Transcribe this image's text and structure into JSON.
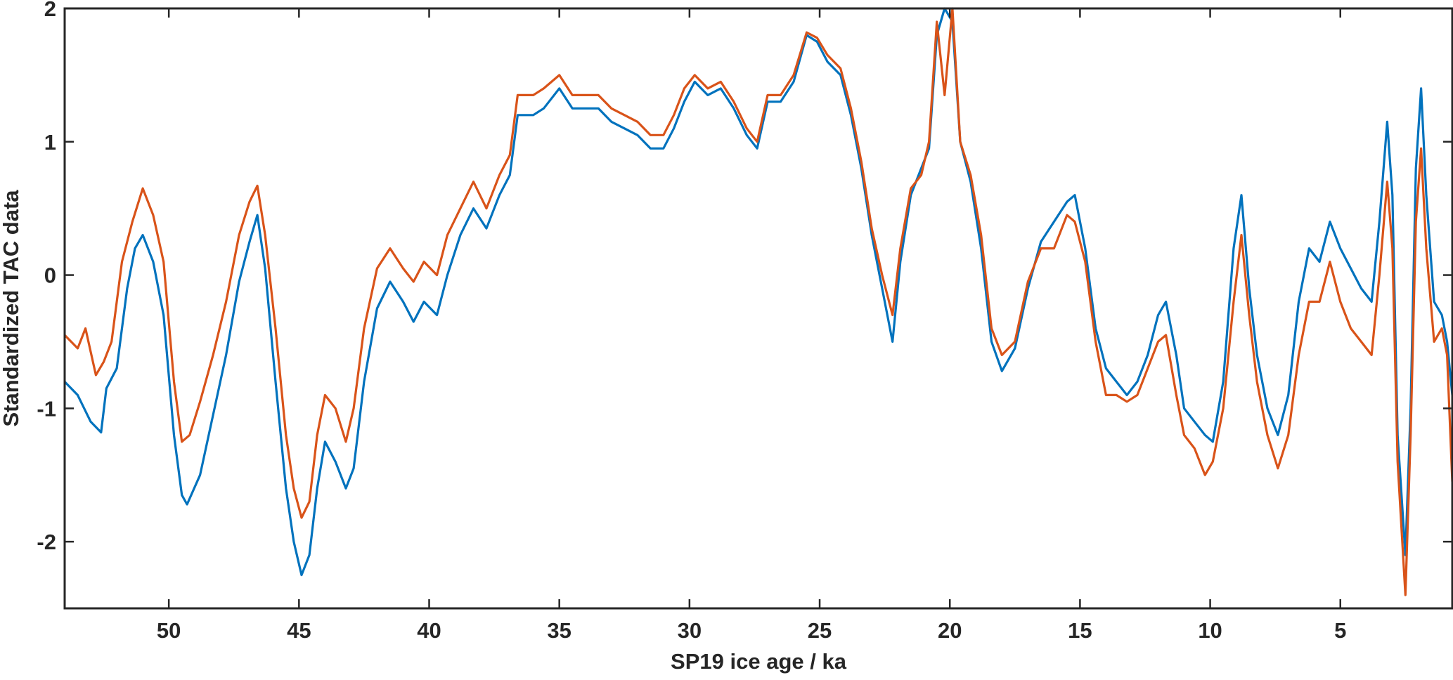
{
  "chart_data": {
    "type": "line",
    "xlabel": "SP19 ice age / ka",
    "ylabel": "Standardized TAC data",
    "x_reversed": true,
    "xlim": [
      54,
      0.7
    ],
    "ylim": [
      -2.5,
      2
    ],
    "xticks": [
      50,
      45,
      40,
      35,
      30,
      25,
      20,
      15,
      10,
      5
    ],
    "yticks": [
      -2,
      -1,
      0,
      1,
      2
    ],
    "grid": false,
    "legend": "none",
    "series": [
      {
        "color": "#0072BD",
        "points": [
          [
            54,
            -0.8
          ],
          [
            53.5,
            -0.9
          ],
          [
            53,
            -1.1
          ],
          [
            52.6,
            -1.18
          ],
          [
            52.4,
            -0.85
          ],
          [
            52,
            -0.7
          ],
          [
            51.6,
            -0.1
          ],
          [
            51.3,
            0.2
          ],
          [
            51,
            0.3
          ],
          [
            50.6,
            0.1
          ],
          [
            50.2,
            -0.3
          ],
          [
            49.8,
            -1.2
          ],
          [
            49.5,
            -1.65
          ],
          [
            49.3,
            -1.72
          ],
          [
            48.8,
            -1.5
          ],
          [
            48.3,
            -1.05
          ],
          [
            47.8,
            -0.6
          ],
          [
            47.3,
            -0.05
          ],
          [
            46.9,
            0.25
          ],
          [
            46.6,
            0.45
          ],
          [
            46.3,
            0.05
          ],
          [
            45.9,
            -0.8
          ],
          [
            45.5,
            -1.6
          ],
          [
            45.2,
            -2.0
          ],
          [
            44.9,
            -2.25
          ],
          [
            44.6,
            -2.1
          ],
          [
            44.3,
            -1.6
          ],
          [
            44,
            -1.25
          ],
          [
            43.6,
            -1.4
          ],
          [
            43.2,
            -1.6
          ],
          [
            42.9,
            -1.45
          ],
          [
            42.5,
            -0.8
          ],
          [
            42,
            -0.25
          ],
          [
            41.5,
            -0.05
          ],
          [
            41,
            -0.2
          ],
          [
            40.6,
            -0.35
          ],
          [
            40.2,
            -0.2
          ],
          [
            39.7,
            -0.3
          ],
          [
            39.3,
            0.0
          ],
          [
            38.8,
            0.3
          ],
          [
            38.3,
            0.5
          ],
          [
            37.8,
            0.35
          ],
          [
            37.3,
            0.6
          ],
          [
            36.9,
            0.75
          ],
          [
            36.6,
            1.2
          ],
          [
            36,
            1.2
          ],
          [
            35.6,
            1.25
          ],
          [
            35,
            1.4
          ],
          [
            34.5,
            1.25
          ],
          [
            34,
            1.25
          ],
          [
            33.5,
            1.25
          ],
          [
            33,
            1.15
          ],
          [
            32.5,
            1.1
          ],
          [
            32,
            1.05
          ],
          [
            31.5,
            0.95
          ],
          [
            31,
            0.95
          ],
          [
            30.6,
            1.1
          ],
          [
            30.2,
            1.3
          ],
          [
            29.8,
            1.45
          ],
          [
            29.3,
            1.35
          ],
          [
            28.8,
            1.4
          ],
          [
            28.3,
            1.25
          ],
          [
            27.8,
            1.05
          ],
          [
            27.4,
            0.95
          ],
          [
            27,
            1.3
          ],
          [
            26.5,
            1.3
          ],
          [
            26,
            1.45
          ],
          [
            25.5,
            1.8
          ],
          [
            25.1,
            1.75
          ],
          [
            24.7,
            1.6
          ],
          [
            24.2,
            1.5
          ],
          [
            23.8,
            1.2
          ],
          [
            23.4,
            0.8
          ],
          [
            23,
            0.3
          ],
          [
            22.6,
            -0.1
          ],
          [
            22.2,
            -0.5
          ],
          [
            21.9,
            0.1
          ],
          [
            21.5,
            0.6
          ],
          [
            21.1,
            0.8
          ],
          [
            20.8,
            0.95
          ],
          [
            20.5,
            1.8
          ],
          [
            20.2,
            2.0
          ],
          [
            19.9,
            1.9
          ],
          [
            19.6,
            1.0
          ],
          [
            19.2,
            0.7
          ],
          [
            18.8,
            0.2
          ],
          [
            18.4,
            -0.5
          ],
          [
            18,
            -0.72
          ],
          [
            17.5,
            -0.55
          ],
          [
            17,
            -0.1
          ],
          [
            16.5,
            0.25
          ],
          [
            16,
            0.4
          ],
          [
            15.5,
            0.55
          ],
          [
            15.2,
            0.6
          ],
          [
            14.8,
            0.2
          ],
          [
            14.4,
            -0.4
          ],
          [
            14,
            -0.7
          ],
          [
            13.6,
            -0.8
          ],
          [
            13.2,
            -0.9
          ],
          [
            12.8,
            -0.8
          ],
          [
            12.4,
            -0.6
          ],
          [
            12,
            -0.3
          ],
          [
            11.7,
            -0.2
          ],
          [
            11.3,
            -0.6
          ],
          [
            11,
            -1.0
          ],
          [
            10.6,
            -1.1
          ],
          [
            10.2,
            -1.2
          ],
          [
            9.9,
            -1.25
          ],
          [
            9.5,
            -0.8
          ],
          [
            9.1,
            0.2
          ],
          [
            8.8,
            0.6
          ],
          [
            8.5,
            -0.1
          ],
          [
            8.2,
            -0.6
          ],
          [
            7.8,
            -1.0
          ],
          [
            7.4,
            -1.2
          ],
          [
            7,
            -0.9
          ],
          [
            6.6,
            -0.2
          ],
          [
            6.2,
            0.2
          ],
          [
            5.8,
            0.1
          ],
          [
            5.4,
            0.4
          ],
          [
            5,
            0.2
          ],
          [
            4.6,
            0.05
          ],
          [
            4.2,
            -0.1
          ],
          [
            3.8,
            -0.2
          ],
          [
            3.5,
            0.4
          ],
          [
            3.2,
            1.15
          ],
          [
            3,
            0.6
          ],
          [
            2.8,
            -1.2
          ],
          [
            2.5,
            -2.1
          ],
          [
            2.3,
            -1.0
          ],
          [
            2.1,
            0.8
          ],
          [
            1.9,
            1.4
          ],
          [
            1.7,
            0.6
          ],
          [
            1.4,
            -0.2
          ],
          [
            1.1,
            -0.3
          ],
          [
            0.9,
            -0.5
          ],
          [
            0.7,
            -0.9
          ]
        ]
      },
      {
        "color": "#D95319",
        "points": [
          [
            54,
            -0.45
          ],
          [
            53.5,
            -0.55
          ],
          [
            53.2,
            -0.4
          ],
          [
            52.8,
            -0.75
          ],
          [
            52.5,
            -0.65
          ],
          [
            52.2,
            -0.5
          ],
          [
            51.8,
            0.1
          ],
          [
            51.4,
            0.4
          ],
          [
            51,
            0.65
          ],
          [
            50.6,
            0.45
          ],
          [
            50.2,
            0.1
          ],
          [
            49.8,
            -0.8
          ],
          [
            49.5,
            -1.25
          ],
          [
            49.2,
            -1.2
          ],
          [
            48.8,
            -0.95
          ],
          [
            48.3,
            -0.6
          ],
          [
            47.8,
            -0.2
          ],
          [
            47.3,
            0.3
          ],
          [
            46.9,
            0.55
          ],
          [
            46.6,
            0.67
          ],
          [
            46.3,
            0.3
          ],
          [
            45.9,
            -0.4
          ],
          [
            45.5,
            -1.2
          ],
          [
            45.2,
            -1.6
          ],
          [
            44.9,
            -1.82
          ],
          [
            44.6,
            -1.7
          ],
          [
            44.3,
            -1.2
          ],
          [
            44,
            -0.9
          ],
          [
            43.6,
            -1.0
          ],
          [
            43.2,
            -1.25
          ],
          [
            42.9,
            -1.0
          ],
          [
            42.5,
            -0.4
          ],
          [
            42,
            0.05
          ],
          [
            41.5,
            0.2
          ],
          [
            41,
            0.05
          ],
          [
            40.6,
            -0.05
          ],
          [
            40.2,
            0.1
          ],
          [
            39.7,
            0.0
          ],
          [
            39.3,
            0.3
          ],
          [
            38.8,
            0.5
          ],
          [
            38.3,
            0.7
          ],
          [
            37.8,
            0.5
          ],
          [
            37.3,
            0.75
          ],
          [
            36.9,
            0.9
          ],
          [
            36.6,
            1.35
          ],
          [
            36,
            1.35
          ],
          [
            35.6,
            1.4
          ],
          [
            35,
            1.5
          ],
          [
            34.5,
            1.35
          ],
          [
            34,
            1.35
          ],
          [
            33.5,
            1.35
          ],
          [
            33,
            1.25
          ],
          [
            32.5,
            1.2
          ],
          [
            32,
            1.15
          ],
          [
            31.5,
            1.05
          ],
          [
            31,
            1.05
          ],
          [
            30.6,
            1.2
          ],
          [
            30.2,
            1.4
          ],
          [
            29.8,
            1.5
          ],
          [
            29.3,
            1.4
          ],
          [
            28.8,
            1.45
          ],
          [
            28.3,
            1.3
          ],
          [
            27.8,
            1.1
          ],
          [
            27.4,
            1.0
          ],
          [
            27,
            1.35
          ],
          [
            26.5,
            1.35
          ],
          [
            26,
            1.5
          ],
          [
            25.5,
            1.82
          ],
          [
            25.1,
            1.78
          ],
          [
            24.7,
            1.65
          ],
          [
            24.2,
            1.55
          ],
          [
            23.8,
            1.25
          ],
          [
            23.4,
            0.85
          ],
          [
            23,
            0.35
          ],
          [
            22.6,
            0.0
          ],
          [
            22.2,
            -0.3
          ],
          [
            21.9,
            0.2
          ],
          [
            21.5,
            0.65
          ],
          [
            21.1,
            0.75
          ],
          [
            20.8,
            1.0
          ],
          [
            20.5,
            1.9
          ],
          [
            20.2,
            1.35
          ],
          [
            19.9,
            2.0
          ],
          [
            19.6,
            1.0
          ],
          [
            19.2,
            0.75
          ],
          [
            18.8,
            0.3
          ],
          [
            18.4,
            -0.4
          ],
          [
            18,
            -0.6
          ],
          [
            17.5,
            -0.5
          ],
          [
            17,
            -0.05
          ],
          [
            16.5,
            0.2
          ],
          [
            16,
            0.2
          ],
          [
            15.5,
            0.45
          ],
          [
            15.2,
            0.4
          ],
          [
            14.8,
            0.1
          ],
          [
            14.4,
            -0.5
          ],
          [
            14,
            -0.9
          ],
          [
            13.6,
            -0.9
          ],
          [
            13.2,
            -0.95
          ],
          [
            12.8,
            -0.9
          ],
          [
            12.4,
            -0.7
          ],
          [
            12,
            -0.5
          ],
          [
            11.7,
            -0.45
          ],
          [
            11.3,
            -0.9
          ],
          [
            11,
            -1.2
          ],
          [
            10.6,
            -1.3
          ],
          [
            10.2,
            -1.5
          ],
          [
            9.9,
            -1.4
          ],
          [
            9.5,
            -1.0
          ],
          [
            9.1,
            -0.2
          ],
          [
            8.8,
            0.3
          ],
          [
            8.5,
            -0.3
          ],
          [
            8.2,
            -0.8
          ],
          [
            7.8,
            -1.2
          ],
          [
            7.4,
            -1.45
          ],
          [
            7,
            -1.2
          ],
          [
            6.6,
            -0.6
          ],
          [
            6.2,
            -0.2
          ],
          [
            5.8,
            -0.2
          ],
          [
            5.4,
            0.1
          ],
          [
            5,
            -0.2
          ],
          [
            4.6,
            -0.4
          ],
          [
            4.2,
            -0.5
          ],
          [
            3.8,
            -0.6
          ],
          [
            3.5,
            0.0
          ],
          [
            3.2,
            0.7
          ],
          [
            3,
            0.2
          ],
          [
            2.8,
            -1.4
          ],
          [
            2.5,
            -2.4
          ],
          [
            2.3,
            -1.2
          ],
          [
            2.1,
            0.4
          ],
          [
            1.9,
            0.95
          ],
          [
            1.7,
            0.2
          ],
          [
            1.4,
            -0.5
          ],
          [
            1.1,
            -0.4
          ],
          [
            0.9,
            -0.6
          ],
          [
            0.7,
            -1.55
          ]
        ]
      }
    ]
  }
}
